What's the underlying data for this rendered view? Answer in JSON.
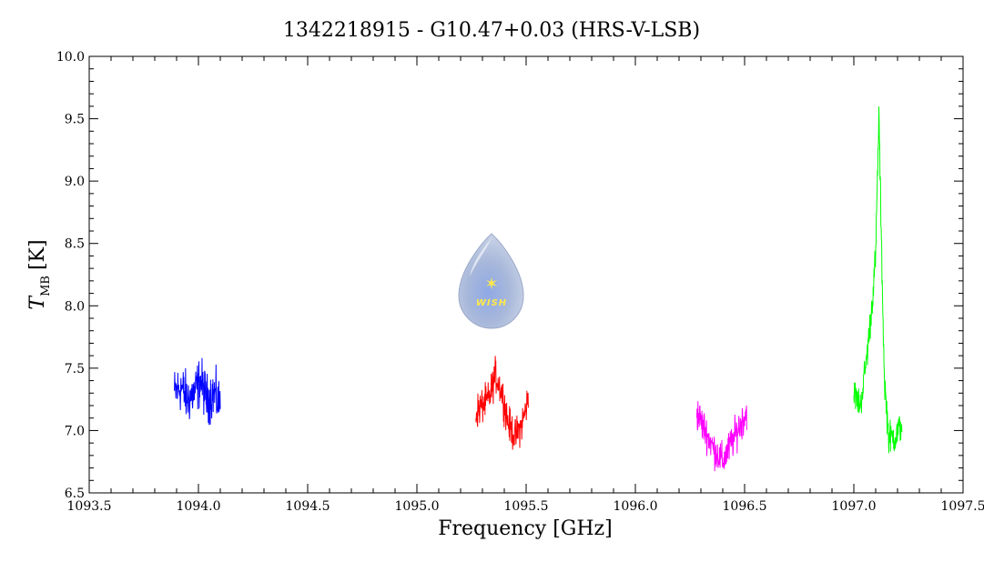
{
  "chart_data": {
    "type": "line",
    "title": "1342218915 - G10.47+0.03 (HRS-V-LSB)",
    "xlabel": "Frequency [GHz]",
    "ylabel": "T",
    "ylabel_sub": "MB",
    "ylabel_unit": "[K]",
    "xlim": [
      1093.5,
      1097.5
    ],
    "ylim": [
      6.5,
      10.0
    ],
    "x_ticks": [
      "1093.5",
      "1094.0",
      "1094.5",
      "1095.0",
      "1095.5",
      "1096.0",
      "1096.5",
      "1097.0",
      "1097.5"
    ],
    "y_ticks": [
      "6.5",
      "7.0",
      "7.5",
      "8.0",
      "8.5",
      "9.0",
      "9.5",
      "10.0"
    ],
    "grid": false,
    "series": [
      {
        "color": "#0000ff",
        "x": [
          1093.89,
          1093.92,
          1093.95,
          1093.98,
          1094.01,
          1094.04,
          1094.07,
          1094.1
        ],
        "y": [
          7.3,
          7.35,
          7.25,
          7.3,
          7.4,
          7.25,
          7.3,
          7.2
        ],
        "noise": 0.17
      },
      {
        "color": "#ff0000",
        "x": [
          1095.27,
          1095.3,
          1095.33,
          1095.36,
          1095.39,
          1095.42,
          1095.45,
          1095.48,
          1095.51
        ],
        "y": [
          7.15,
          7.2,
          7.25,
          7.45,
          7.3,
          7.05,
          6.95,
          7.05,
          7.25
        ],
        "noise": 0.12
      },
      {
        "color": "#ff00ff",
        "x": [
          1096.28,
          1096.32,
          1096.36,
          1096.4,
          1096.44,
          1096.48,
          1096.51
        ],
        "y": [
          7.15,
          7.0,
          6.85,
          6.75,
          6.9,
          7.05,
          7.15
        ],
        "noise": 0.12
      },
      {
        "color": "#00ff00",
        "x": [
          1097.0,
          1097.03,
          1097.06,
          1097.08,
          1097.1,
          1097.115,
          1097.125,
          1097.14,
          1097.16,
          1097.19,
          1097.22
        ],
        "y": [
          7.3,
          7.2,
          7.6,
          7.95,
          8.4,
          9.55,
          8.6,
          7.4,
          6.95,
          6.95,
          7.05
        ],
        "noise": 0.11
      }
    ]
  },
  "logo": {
    "text": "WISH",
    "fill": "#a9b9dc"
  }
}
